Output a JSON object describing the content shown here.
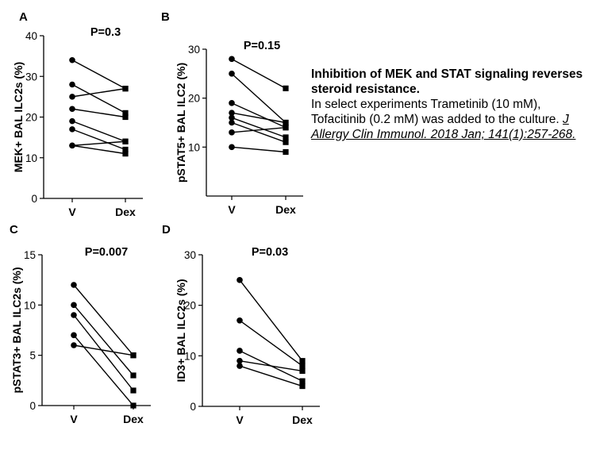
{
  "caption": {
    "title": "Inhibition of MEK and STAT signaling reverses steroid resistance.",
    "body": "In select experiments Trametinib (10 mM), Tofacitinib (0.2 mM) was added to the culture.",
    "reference": "J Allergy Clin Immunol. 2018 Jan; 141(1):257-268."
  },
  "chart_data": [
    {
      "type": "line",
      "panel": "A",
      "title": "P=0.3",
      "ylabel": "MEK+ BAL ILC2s (%)",
      "categories": [
        "V",
        "Dex"
      ],
      "ylim": [
        0,
        40
      ],
      "yticks": [
        0,
        10,
        20,
        30,
        40
      ],
      "series": [
        {
          "values": [
            34,
            27
          ]
        },
        {
          "values": [
            28,
            21
          ]
        },
        {
          "values": [
            25,
            27
          ]
        },
        {
          "values": [
            22,
            20
          ]
        },
        {
          "values": [
            19,
            14
          ]
        },
        {
          "values": [
            17,
            12
          ]
        },
        {
          "values": [
            13,
            14
          ]
        },
        {
          "values": [
            13,
            11
          ]
        }
      ]
    },
    {
      "type": "line",
      "panel": "B",
      "title": "P=0.15",
      "ylabel": "pSTAT5+ BAL ILC2 (%)",
      "categories": [
        "V",
        "Dex"
      ],
      "ylim": [
        0,
        30
      ],
      "yticks": [
        10,
        20,
        30
      ],
      "series": [
        {
          "values": [
            28,
            22
          ]
        },
        {
          "values": [
            25,
            15
          ]
        },
        {
          "values": [
            19,
            14
          ]
        },
        {
          "values": [
            17,
            15
          ]
        },
        {
          "values": [
            16,
            12
          ]
        },
        {
          "values": [
            15,
            11
          ]
        },
        {
          "values": [
            13,
            14
          ]
        },
        {
          "values": [
            10,
            9
          ]
        }
      ]
    },
    {
      "type": "line",
      "panel": "C",
      "title": "P=0.007",
      "ylabel": "pSTAT3+ BAL ILC2s (%)",
      "categories": [
        "V",
        "Dex"
      ],
      "ylim": [
        0,
        15
      ],
      "yticks": [
        0,
        5,
        10,
        15
      ],
      "series": [
        {
          "values": [
            12,
            5
          ]
        },
        {
          "values": [
            10,
            3
          ]
        },
        {
          "values": [
            9,
            1.5
          ]
        },
        {
          "values": [
            7,
            0
          ]
        },
        {
          "values": [
            6,
            5
          ]
        }
      ]
    },
    {
      "type": "line",
      "panel": "D",
      "title": "P=0.03",
      "ylabel": "ID3+ BAL ILC2s (%)",
      "categories": [
        "V",
        "Dex"
      ],
      "ylim": [
        0,
        30
      ],
      "yticks": [
        0,
        10,
        20,
        30
      ],
      "series": [
        {
          "values": [
            25,
            9
          ]
        },
        {
          "values": [
            17,
            8
          ]
        },
        {
          "values": [
            11,
            5
          ]
        },
        {
          "values": [
            9,
            7
          ]
        },
        {
          "values": [
            8,
            4
          ]
        }
      ]
    }
  ]
}
